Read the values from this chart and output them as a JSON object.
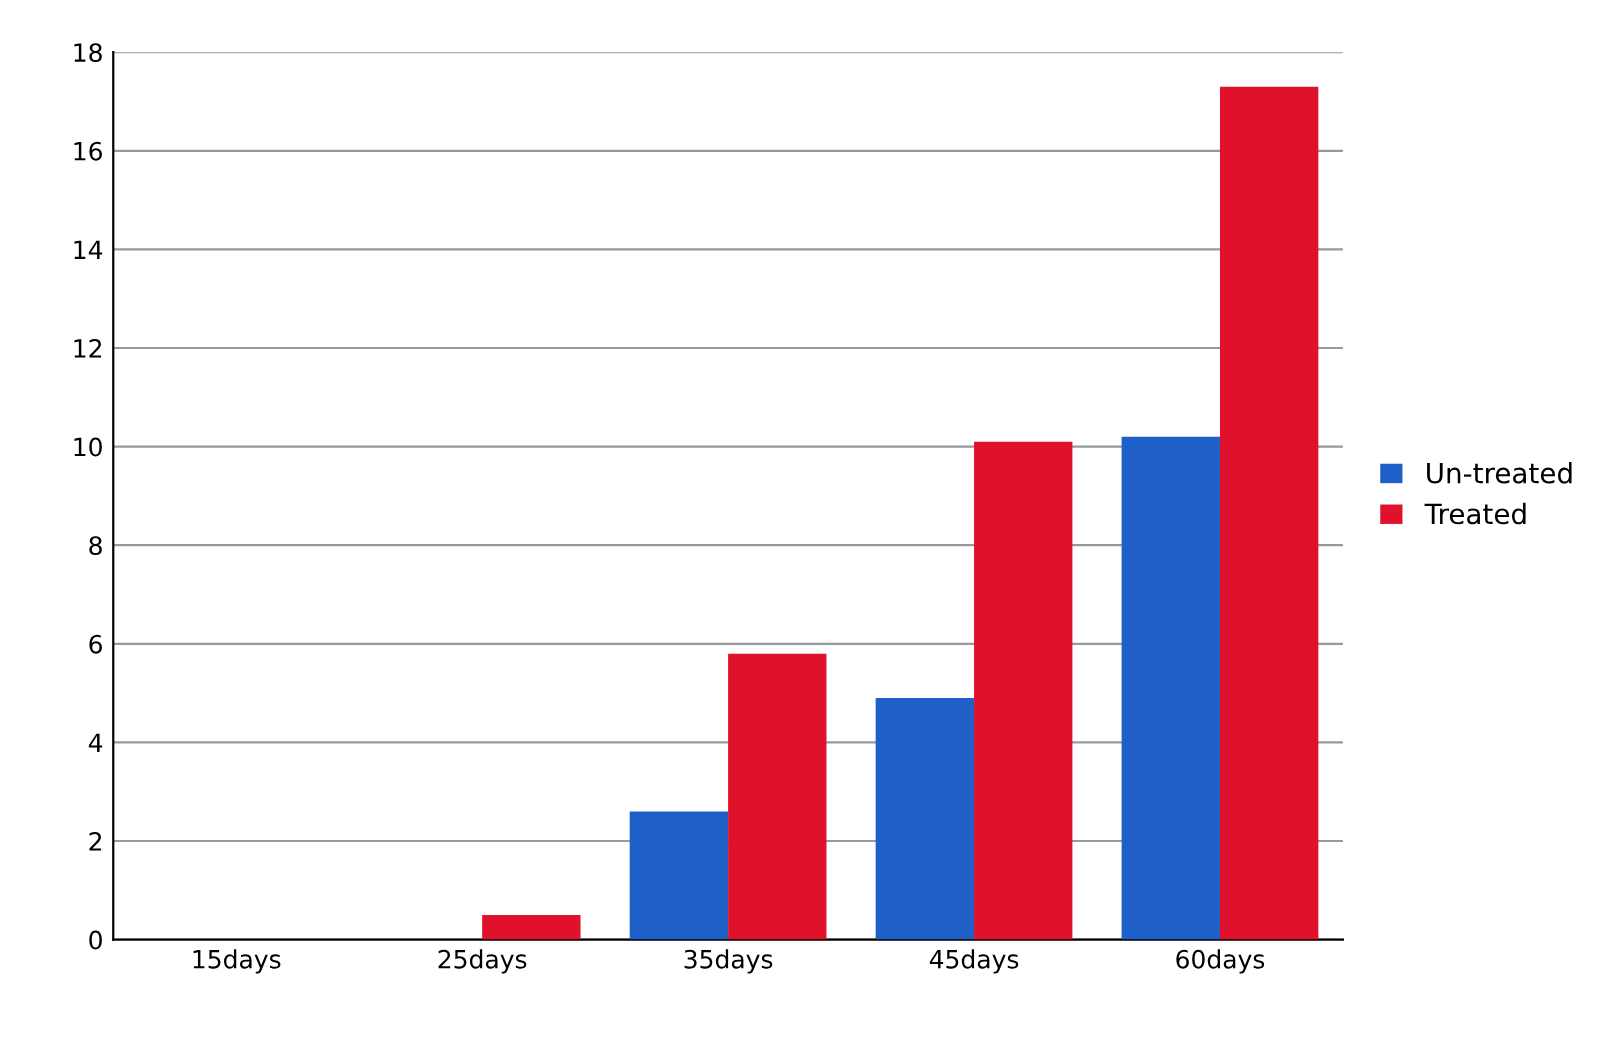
{
  "chart_data": {
    "type": "bar",
    "categories": [
      "15days",
      "25days",
      "35days",
      "45days",
      "60days"
    ],
    "series": [
      {
        "name": "Un-treated",
        "color": "#1f5fc8",
        "values": [
          0,
          0,
          2.6,
          4.9,
          10.2
        ]
      },
      {
        "name": "Treated",
        "color": "#e0112b",
        "values": [
          0,
          0.5,
          5.8,
          10.1,
          17.3
        ]
      }
    ],
    "ylim": [
      0,
      18
    ],
    "yticks": [
      0,
      2,
      4,
      6,
      8,
      10,
      12,
      14,
      16,
      18
    ],
    "grid": "y",
    "legend": "right"
  }
}
